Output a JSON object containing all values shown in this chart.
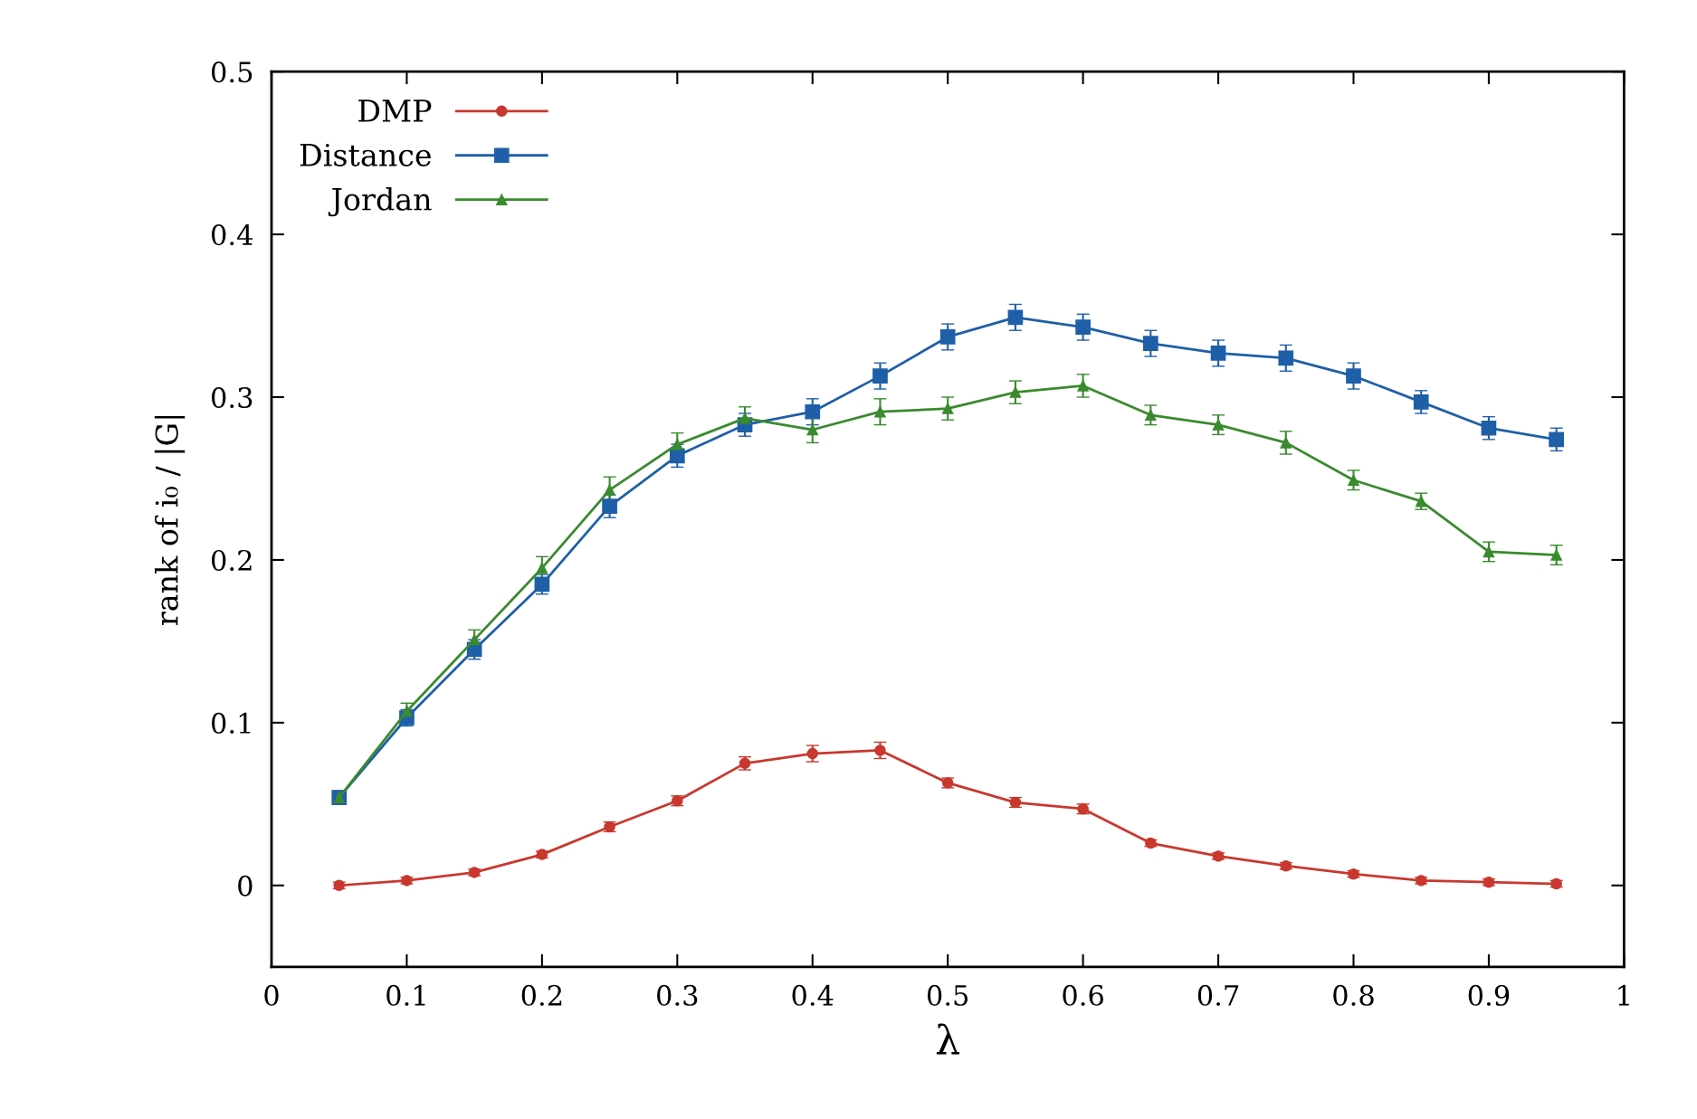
{
  "chart_data": {
    "type": "line",
    "xlabel": "λ",
    "ylabel": "rank of i₀ / |G|",
    "x": [
      0.05,
      0.1,
      0.15,
      0.2,
      0.25,
      0.3,
      0.35,
      0.4,
      0.45,
      0.5,
      0.55,
      0.6,
      0.65,
      0.7,
      0.75,
      0.8,
      0.85,
      0.9,
      0.95
    ],
    "series": [
      {
        "name": "DMP",
        "color": "#c8382e",
        "marker": "circle",
        "values": [
          0,
          0.003,
          0.008,
          0.019,
          0.036,
          0.052,
          0.075,
          0.081,
          0.083,
          0.063,
          0.051,
          0.047,
          0.026,
          0.018,
          0.012,
          0.007,
          0.003,
          0.002,
          0.001
        ],
        "errors": [
          0.002,
          0.002,
          0.002,
          0.002,
          0.003,
          0.003,
          0.004,
          0.005,
          0.005,
          0.003,
          0.003,
          0.003,
          0.002,
          0.002,
          0.002,
          0.002,
          0.002,
          0.002,
          0.002
        ]
      },
      {
        "name": "Distance",
        "color": "#1f5fa8",
        "marker": "square",
        "values": [
          0.054,
          0.103,
          0.145,
          0.185,
          0.233,
          0.264,
          0.283,
          0.291,
          0.313,
          0.337,
          0.349,
          0.343,
          0.333,
          0.327,
          0.324,
          0.313,
          0.297,
          0.281,
          0.274
        ],
        "errors": [
          0.004,
          0.005,
          0.006,
          0.006,
          0.007,
          0.007,
          0.007,
          0.008,
          0.008,
          0.008,
          0.008,
          0.008,
          0.008,
          0.008,
          0.008,
          0.008,
          0.007,
          0.007,
          0.007
        ]
      },
      {
        "name": "Jordan",
        "color": "#3a8a2e",
        "marker": "triangle",
        "values": [
          0.054,
          0.107,
          0.151,
          0.195,
          0.243,
          0.271,
          0.287,
          0.28,
          0.291,
          0.293,
          0.303,
          0.307,
          0.289,
          0.283,
          0.272,
          0.249,
          0.236,
          0.205,
          0.203
        ],
        "errors": [
          0.004,
          0.005,
          0.006,
          0.007,
          0.008,
          0.007,
          0.007,
          0.008,
          0.008,
          0.007,
          0.007,
          0.007,
          0.006,
          0.006,
          0.007,
          0.006,
          0.005,
          0.006,
          0.006
        ]
      }
    ],
    "xlim": [
      0,
      1
    ],
    "xticks": [
      0,
      0.1,
      0.2,
      0.3,
      0.4,
      0.5,
      0.6,
      0.7,
      0.8,
      0.9,
      1
    ],
    "ylim": [
      -0.05,
      0.5
    ],
    "yticks": [
      0,
      0.1,
      0.2,
      0.3,
      0.4,
      0.5
    ],
    "grid": false,
    "legend": "top left",
    "line_style": "solid"
  }
}
